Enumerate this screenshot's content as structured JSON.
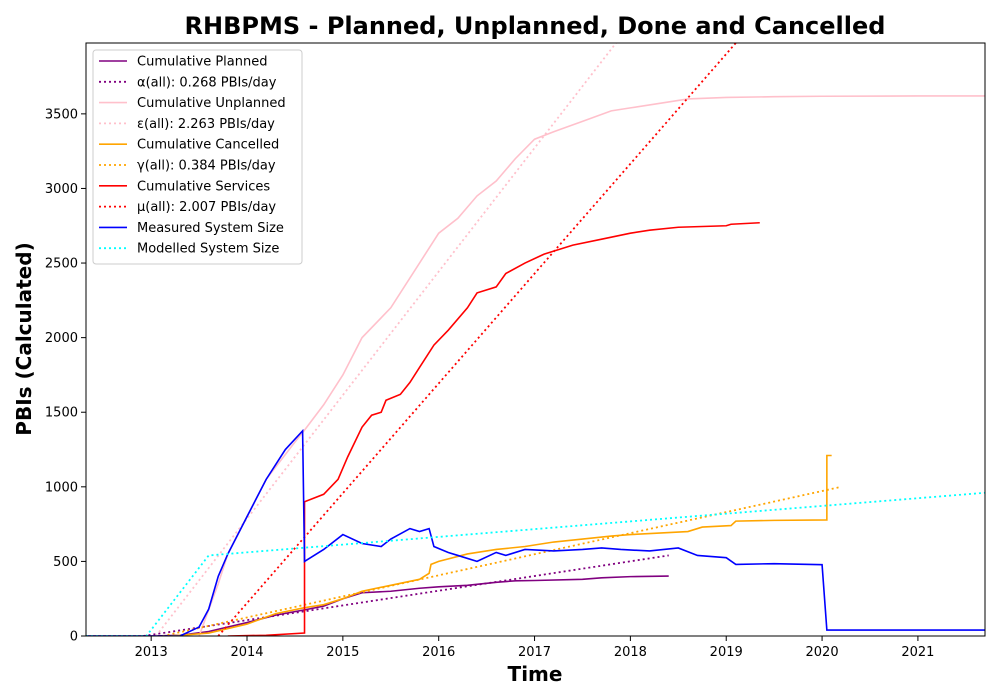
{
  "chart_data": {
    "type": "line",
    "title": "RHBPMS - Planned, Unplanned, Done  and Cancelled",
    "xlabel": "Time",
    "ylabel": "PBIs (Calculated)",
    "xlim": [
      2012.32,
      2021.7
    ],
    "ylim": [
      0,
      3975
    ],
    "x_ticks": [
      2013,
      2014,
      2015,
      2016,
      2017,
      2018,
      2019,
      2020,
      2021
    ],
    "y_ticks": [
      0,
      500,
      1000,
      1500,
      2000,
      2500,
      3000,
      3500
    ],
    "grid": false,
    "legend_position": "top-left",
    "series": [
      {
        "name": "Cumulative Planned",
        "color": "#800080",
        "style": "solid",
        "points": [
          [
            2012.32,
            0
          ],
          [
            2013.0,
            0
          ],
          [
            2013.3,
            5
          ],
          [
            2013.6,
            30
          ],
          [
            2014.0,
            90
          ],
          [
            2014.3,
            140
          ],
          [
            2014.6,
            175
          ],
          [
            2014.8,
            200
          ],
          [
            2015.0,
            250
          ],
          [
            2015.2,
            290
          ],
          [
            2015.5,
            300
          ],
          [
            2015.8,
            320
          ],
          [
            2016.0,
            330
          ],
          [
            2016.3,
            340
          ],
          [
            2016.6,
            360
          ],
          [
            2016.8,
            370
          ],
          [
            2017.0,
            372
          ],
          [
            2017.5,
            380
          ],
          [
            2017.7,
            390
          ],
          [
            2018.0,
            398
          ],
          [
            2018.4,
            402
          ]
        ]
      },
      {
        "name": "α(all): 0.268 PBIs/day",
        "color": "#800080",
        "style": "dotted",
        "points": [
          [
            2012.92,
            0
          ],
          [
            2018.4,
            540
          ]
        ]
      },
      {
        "name": "Cumulative Unplanned",
        "color": "#ffc0cb",
        "style": "solid",
        "points": [
          [
            2013.5,
            0
          ],
          [
            2013.7,
            350
          ],
          [
            2013.8,
            550
          ],
          [
            2014.0,
            800
          ],
          [
            2014.2,
            1050
          ],
          [
            2014.5,
            1300
          ],
          [
            2014.6,
            1380
          ],
          [
            2014.8,
            1550
          ],
          [
            2015.0,
            1750
          ],
          [
            2015.2,
            2000
          ],
          [
            2015.5,
            2200
          ],
          [
            2015.8,
            2500
          ],
          [
            2016.0,
            2700
          ],
          [
            2016.2,
            2800
          ],
          [
            2016.4,
            2950
          ],
          [
            2016.6,
            3050
          ],
          [
            2016.8,
            3200
          ],
          [
            2017.0,
            3330
          ],
          [
            2017.2,
            3380
          ],
          [
            2017.5,
            3450
          ],
          [
            2017.8,
            3520
          ],
          [
            2018.0,
            3540
          ],
          [
            2018.3,
            3570
          ],
          [
            2018.6,
            3600
          ],
          [
            2019.0,
            3610
          ],
          [
            2019.5,
            3615
          ],
          [
            2020.0,
            3618
          ],
          [
            2021.0,
            3620
          ],
          [
            2021.7,
            3620
          ]
        ]
      },
      {
        "name": "ε(all): 2.263 PBIs/day",
        "color": "#ffc0cb",
        "style": "dotted",
        "points": [
          [
            2013.05,
            0
          ],
          [
            2017.85,
            3975
          ]
        ]
      },
      {
        "name": "Cumulative Cancelled",
        "color": "#ffa500",
        "style": "solid",
        "points": [
          [
            2013.2,
            0
          ],
          [
            2013.6,
            20
          ],
          [
            2014.0,
            80
          ],
          [
            2014.3,
            150
          ],
          [
            2014.6,
            190
          ],
          [
            2014.8,
            210
          ],
          [
            2015.0,
            250
          ],
          [
            2015.2,
            300
          ],
          [
            2015.5,
            340
          ],
          [
            2015.8,
            380
          ],
          [
            2015.9,
            420
          ],
          [
            2015.92,
            480
          ],
          [
            2016.0,
            500
          ],
          [
            2016.3,
            550
          ],
          [
            2016.6,
            580
          ],
          [
            2016.9,
            600
          ],
          [
            2017.2,
            630
          ],
          [
            2017.5,
            650
          ],
          [
            2017.8,
            670
          ],
          [
            2018.0,
            680
          ],
          [
            2018.3,
            690
          ],
          [
            2018.6,
            700
          ],
          [
            2018.75,
            730
          ],
          [
            2019.05,
            740
          ],
          [
            2019.1,
            770
          ],
          [
            2019.5,
            775
          ],
          [
            2020.05,
            778
          ],
          [
            2020.05,
            1210
          ],
          [
            2020.1,
            1210
          ]
        ]
      },
      {
        "name": "γ(all): 0.384 PBIs/day",
        "color": "#ffa500",
        "style": "dotted",
        "points": [
          [
            2013.12,
            0
          ],
          [
            2020.2,
            1000
          ]
        ]
      },
      {
        "name": "Cumulative Services",
        "color": "#ff0000",
        "style": "solid",
        "points": [
          [
            2013.8,
            0
          ],
          [
            2014.2,
            5
          ],
          [
            2014.6,
            20
          ],
          [
            2014.6,
            900
          ],
          [
            2014.8,
            950
          ],
          [
            2014.95,
            1050
          ],
          [
            2015.05,
            1200
          ],
          [
            2015.2,
            1400
          ],
          [
            2015.3,
            1480
          ],
          [
            2015.4,
            1500
          ],
          [
            2015.45,
            1580
          ],
          [
            2015.6,
            1620
          ],
          [
            2015.7,
            1700
          ],
          [
            2015.8,
            1800
          ],
          [
            2015.95,
            1950
          ],
          [
            2016.1,
            2050
          ],
          [
            2016.3,
            2200
          ],
          [
            2016.4,
            2300
          ],
          [
            2016.6,
            2340
          ],
          [
            2016.7,
            2430
          ],
          [
            2016.9,
            2500
          ],
          [
            2017.1,
            2560
          ],
          [
            2017.4,
            2620
          ],
          [
            2017.7,
            2660
          ],
          [
            2018.0,
            2700
          ],
          [
            2018.2,
            2720
          ],
          [
            2018.5,
            2740
          ],
          [
            2019.0,
            2750
          ],
          [
            2019.05,
            2760
          ],
          [
            2019.35,
            2770
          ]
        ]
      },
      {
        "name": "μ(all): 2.007 PBIs/day",
        "color": "#ff0000",
        "style": "dotted",
        "points": [
          [
            2013.7,
            0
          ],
          [
            2019.1,
            3975
          ]
        ]
      },
      {
        "name": "Measured System Size",
        "color": "#0000ff",
        "style": "solid",
        "points": [
          [
            2012.32,
            0
          ],
          [
            2013.3,
            0
          ],
          [
            2013.5,
            60
          ],
          [
            2013.6,
            180
          ],
          [
            2013.7,
            400
          ],
          [
            2013.8,
            550
          ],
          [
            2014.0,
            800
          ],
          [
            2014.2,
            1050
          ],
          [
            2014.4,
            1250
          ],
          [
            2014.58,
            1375
          ],
          [
            2014.6,
            500
          ],
          [
            2014.8,
            580
          ],
          [
            2015.0,
            680
          ],
          [
            2015.2,
            620
          ],
          [
            2015.4,
            600
          ],
          [
            2015.5,
            650
          ],
          [
            2015.7,
            720
          ],
          [
            2015.8,
            700
          ],
          [
            2015.9,
            720
          ],
          [
            2015.95,
            600
          ],
          [
            2016.1,
            560
          ],
          [
            2016.2,
            540
          ],
          [
            2016.4,
            500
          ],
          [
            2016.6,
            560
          ],
          [
            2016.7,
            540
          ],
          [
            2016.9,
            580
          ],
          [
            2017.2,
            570
          ],
          [
            2017.5,
            580
          ],
          [
            2017.7,
            590
          ],
          [
            2017.9,
            580
          ],
          [
            2018.2,
            570
          ],
          [
            2018.5,
            590
          ],
          [
            2018.7,
            540
          ],
          [
            2019.0,
            525
          ],
          [
            2019.1,
            480
          ],
          [
            2019.5,
            485
          ],
          [
            2020.0,
            478
          ],
          [
            2020.05,
            40
          ],
          [
            2021.7,
            40
          ]
        ]
      },
      {
        "name": "Modelled System Size",
        "color": "#00ffff",
        "style": "dotted",
        "points": [
          [
            2012.32,
            0
          ],
          [
            2012.95,
            0
          ],
          [
            2013.6,
            540
          ],
          [
            2021.7,
            960
          ]
        ]
      }
    ]
  }
}
